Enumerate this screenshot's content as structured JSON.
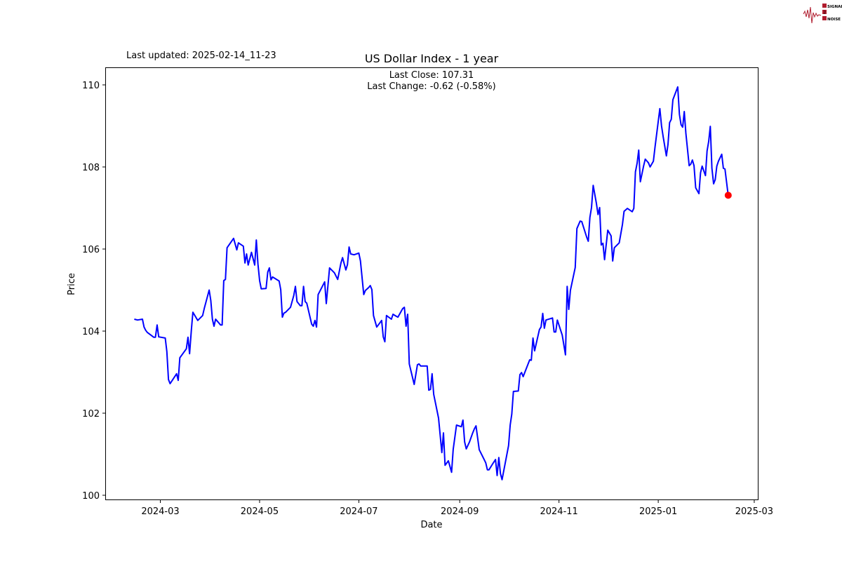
{
  "logo": {
    "text": [
      "SIGNAL",
      "2",
      "NOISE"
    ],
    "color": "#b01c2e"
  },
  "last_updated": "Last updated: 2025-02-14_11-23",
  "chart_data": {
    "type": "line",
    "title": "US Dollar Index - 1 year",
    "annotation": [
      "Last Close: 107.31",
      "Last Change: -0.62 (-0.58%)"
    ],
    "xlabel": "Date",
    "ylabel": "Price",
    "xlim": [
      "2024-02-01",
      "2025-03-05"
    ],
    "ylim": [
      99.9,
      110.4
    ],
    "x_ticks": [
      "2024-03",
      "2024-05",
      "2024-07",
      "2024-09",
      "2024-11",
      "2025-01",
      "2025-03"
    ],
    "y_ticks": [
      100,
      102,
      104,
      106,
      108,
      110
    ],
    "grid": false,
    "line_color": "#0000ff",
    "last_point_color": "#ff0000",
    "last_point": {
      "x": "2025-02-13",
      "y": 107.31
    },
    "series": [
      {
        "x": [
          "2024-02-14",
          "2024-02-16",
          "2024-02-19",
          "2024-02-20",
          "2024-02-21",
          "2024-02-22",
          "2024-02-26",
          "2024-02-27",
          "2024-02-28",
          "2024-02-29",
          "2024-03-04",
          "2024-03-05",
          "2024-03-06",
          "2024-03-07",
          "2024-03-11",
          "2024-03-12",
          "2024-03-13",
          "2024-03-17",
          "2024-03-18",
          "2024-03-19",
          "2024-03-20",
          "2024-03-21",
          "2024-03-24",
          "2024-03-27",
          "2024-03-28",
          "2024-03-31",
          "2024-04-01",
          "2024-04-02",
          "2024-04-03",
          "2024-04-04",
          "2024-04-07",
          "2024-04-08",
          "2024-04-09",
          "2024-04-10",
          "2024-04-11",
          "2024-04-15",
          "2024-04-17",
          "2024-04-18",
          "2024-04-21",
          "2024-04-22",
          "2024-04-23",
          "2024-04-24",
          "2024-04-26",
          "2024-04-28",
          "2024-04-29",
          "2024-04-30",
          "2024-05-01",
          "2024-05-02",
          "2024-05-05",
          "2024-05-06",
          "2024-05-07",
          "2024-05-08",
          "2024-05-09",
          "2024-05-13",
          "2024-05-14",
          "2024-05-15",
          "2024-05-16",
          "2024-05-17",
          "2024-05-20",
          "2024-05-22",
          "2024-05-23",
          "2024-05-24",
          "2024-05-26",
          "2024-05-27",
          "2024-05-28",
          "2024-05-29",
          "2024-05-30",
          "2024-06-02",
          "2024-06-03",
          "2024-06-04",
          "2024-06-05",
          "2024-06-06",
          "2024-06-10",
          "2024-06-11",
          "2024-06-13",
          "2024-06-16",
          "2024-06-18",
          "2024-06-20",
          "2024-06-21",
          "2024-06-23",
          "2024-06-24",
          "2024-06-25",
          "2024-06-26",
          "2024-06-28",
          "2024-07-01",
          "2024-07-02",
          "2024-07-04",
          "2024-07-05",
          "2024-07-07",
          "2024-07-08",
          "2024-07-09",
          "2024-07-10",
          "2024-07-12",
          "2024-07-13",
          "2024-07-15",
          "2024-07-16",
          "2024-07-17",
          "2024-07-18",
          "2024-07-21",
          "2024-07-22",
          "2024-07-24",
          "2024-07-25",
          "2024-07-28",
          "2024-07-29",
          "2024-07-30",
          "2024-07-31",
          "2024-08-01",
          "2024-08-04",
          "2024-08-06",
          "2024-08-07",
          "2024-08-08",
          "2024-08-12",
          "2024-08-13",
          "2024-08-14",
          "2024-08-15",
          "2024-08-16",
          "2024-08-19",
          "2024-08-21",
          "2024-08-22",
          "2024-08-23",
          "2024-08-25",
          "2024-08-27",
          "2024-08-28",
          "2024-08-30",
          "2024-09-02",
          "2024-09-03",
          "2024-09-04",
          "2024-09-05",
          "2024-09-07",
          "2024-09-09",
          "2024-09-10",
          "2024-09-11",
          "2024-09-13",
          "2024-09-16",
          "2024-09-17",
          "2024-09-18",
          "2024-09-19",
          "2024-09-21",
          "2024-09-23",
          "2024-09-24",
          "2024-09-25",
          "2024-09-26",
          "2024-09-27",
          "2024-09-29",
          "2024-10-01",
          "2024-10-02",
          "2024-10-03",
          "2024-10-04",
          "2024-10-07",
          "2024-10-08",
          "2024-10-09",
          "2024-10-10",
          "2024-10-14",
          "2024-10-15",
          "2024-10-16",
          "2024-10-17",
          "2024-10-20",
          "2024-10-21",
          "2024-10-22",
          "2024-10-23",
          "2024-10-24",
          "2024-10-28",
          "2024-10-29",
          "2024-10-30",
          "2024-10-31",
          "2024-11-03",
          "2024-11-05",
          "2024-11-06",
          "2024-11-07",
          "2024-11-08",
          "2024-11-11",
          "2024-11-12",
          "2024-11-14",
          "2024-11-15",
          "2024-11-18",
          "2024-11-19",
          "2024-11-20",
          "2024-11-21",
          "2024-11-22",
          "2024-11-24",
          "2024-11-25",
          "2024-11-26",
          "2024-11-27",
          "2024-11-28",
          "2024-11-29",
          "2024-12-01",
          "2024-12-03",
          "2024-12-04",
          "2024-12-05",
          "2024-12-08",
          "2024-12-10",
          "2024-12-11",
          "2024-12-13",
          "2024-12-16",
          "2024-12-17",
          "2024-12-18",
          "2024-12-19",
          "2024-12-20",
          "2024-12-21",
          "2024-12-23",
          "2024-12-24",
          "2024-12-26",
          "2024-12-27",
          "2024-12-29",
          "2024-12-30",
          "2025-01-02",
          "2025-01-03",
          "2025-01-04",
          "2025-01-06",
          "2025-01-07",
          "2025-01-08",
          "2025-01-09",
          "2025-01-10",
          "2025-01-13",
          "2025-01-14",
          "2025-01-15",
          "2025-01-16",
          "2025-01-17",
          "2025-01-18",
          "2025-01-20",
          "2025-01-21",
          "2025-01-22",
          "2025-01-23",
          "2025-01-24",
          "2025-01-26",
          "2025-01-27",
          "2025-01-28",
          "2025-01-30",
          "2025-01-31",
          "2025-02-01",
          "2025-02-02",
          "2025-02-03",
          "2025-02-04",
          "2025-02-05",
          "2025-02-06",
          "2025-02-07",
          "2025-02-09",
          "2025-02-10",
          "2025-02-11",
          "2025-02-13"
        ],
        "y": [
          104.29,
          104.27,
          104.29,
          104.1,
          104.02,
          103.97,
          103.85,
          103.85,
          104.15,
          103.86,
          103.83,
          103.5,
          102.82,
          102.72,
          102.96,
          102.8,
          103.35,
          103.57,
          103.85,
          103.45,
          104.0,
          104.46,
          104.26,
          104.38,
          104.55,
          105.0,
          104.75,
          104.29,
          104.12,
          104.29,
          104.15,
          104.15,
          105.23,
          105.26,
          106.03,
          106.26,
          105.98,
          106.15,
          106.07,
          105.66,
          105.88,
          105.61,
          105.92,
          105.61,
          106.22,
          105.64,
          105.23,
          105.03,
          105.04,
          105.44,
          105.54,
          105.25,
          105.32,
          105.22,
          105.01,
          104.34,
          104.44,
          104.46,
          104.58,
          104.87,
          105.09,
          104.72,
          104.62,
          104.62,
          105.09,
          104.72,
          104.68,
          104.17,
          104.12,
          104.26,
          104.1,
          104.89,
          105.2,
          104.67,
          105.54,
          105.42,
          105.26,
          105.66,
          105.79,
          105.49,
          105.62,
          106.05,
          105.88,
          105.86,
          105.9,
          105.71,
          104.89,
          104.99,
          105.06,
          105.11,
          105.01,
          104.38,
          104.1,
          104.15,
          104.26,
          103.86,
          103.74,
          104.38,
          104.29,
          104.41,
          104.36,
          104.34,
          104.55,
          104.58,
          104.12,
          104.41,
          103.2,
          102.7,
          103.18,
          103.2,
          103.15,
          103.15,
          102.56,
          102.58,
          102.96,
          102.46,
          101.88,
          101.04,
          101.52,
          100.73,
          100.84,
          100.56,
          101.12,
          101.71,
          101.67,
          101.83,
          101.3,
          101.13,
          101.3,
          101.52,
          101.62,
          101.69,
          101.11,
          100.87,
          100.79,
          100.62,
          100.62,
          100.75,
          100.87,
          100.48,
          100.92,
          100.53,
          100.38,
          100.79,
          101.21,
          101.71,
          101.98,
          102.53,
          102.54,
          102.94,
          102.99,
          102.89,
          103.3,
          103.29,
          103.83,
          103.52,
          104.04,
          104.1,
          104.43,
          104.07,
          104.27,
          104.32,
          103.98,
          103.98,
          104.27,
          103.9,
          103.42,
          105.09,
          104.53,
          104.99,
          105.55,
          106.5,
          106.68,
          106.67,
          106.29,
          106.19,
          106.77,
          107.01,
          107.55,
          107.11,
          106.84,
          107.01,
          106.1,
          106.14,
          105.74,
          106.46,
          106.32,
          105.71,
          106.03,
          106.15,
          106.6,
          106.92,
          106.99,
          106.91,
          106.99,
          107.88,
          108.09,
          108.41,
          107.64,
          108.02,
          108.19,
          108.1,
          108.0,
          108.14,
          108.48,
          109.42,
          109.0,
          108.74,
          108.27,
          108.55,
          109.08,
          109.16,
          109.64,
          109.95,
          109.28,
          109.03,
          108.97,
          109.35,
          108.82,
          108.03,
          108.07,
          108.17,
          108.03,
          107.49,
          107.35,
          107.86,
          108.02,
          107.79,
          108.39,
          108.62,
          108.99,
          107.97,
          107.59,
          107.69,
          108.02,
          108.14,
          108.31,
          107.97,
          107.95,
          107.31
        ]
      }
    ]
  }
}
